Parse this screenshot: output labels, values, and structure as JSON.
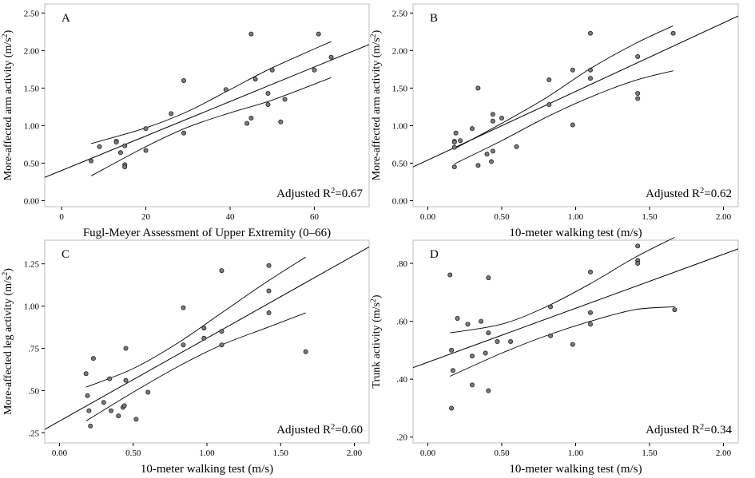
{
  "chart_data": [
    {
      "type": "scatter",
      "panel_letter": "A",
      "xlabel": "Fugl-Meyer Assessment of Upper Extremity (0–66)",
      "ylabel": "More-affected arm activity (m/s²)",
      "annotation": "Adjusted R²=0.67",
      "xlim": [
        -4,
        73
      ],
      "ylim": [
        -0.08,
        2.62
      ],
      "x_ticks": [
        0,
        20,
        40,
        60
      ],
      "x_tick_labels": [
        "0",
        "20",
        "40",
        "60"
      ],
      "y_ticks": [
        0,
        0.5,
        1.0,
        1.5,
        2.0,
        2.5
      ],
      "y_tick_labels": [
        "0.00",
        "0.50",
        "1.00",
        "1.50",
        "2.00",
        "2.50"
      ],
      "points": [
        [
          7,
          0.53
        ],
        [
          9,
          0.72
        ],
        [
          13,
          0.79
        ],
        [
          13,
          0.78
        ],
        [
          14,
          0.64
        ],
        [
          15,
          0.73
        ],
        [
          15,
          0.48
        ],
        [
          15,
          0.45
        ],
        [
          20,
          0.96
        ],
        [
          20,
          0.67
        ],
        [
          26,
          1.16
        ],
        [
          29,
          1.6
        ],
        [
          29,
          0.9
        ],
        [
          39,
          1.48
        ],
        [
          44,
          1.03
        ],
        [
          45,
          1.1
        ],
        [
          45,
          2.22
        ],
        [
          46,
          1.62
        ],
        [
          49,
          1.43
        ],
        [
          49,
          1.28
        ],
        [
          50,
          1.74
        ],
        [
          52,
          1.05
        ],
        [
          53,
          1.35
        ],
        [
          60,
          1.74
        ],
        [
          61,
          2.22
        ],
        [
          64,
          1.91
        ]
      ],
      "fit_line": {
        "x": [
          -4,
          73
        ],
        "y": [
          0.31,
          2.08
        ]
      },
      "ci_upper": {
        "x": [
          7,
          20,
          30,
          40,
          50,
          64
        ],
        "y": [
          0.76,
          0.97,
          1.19,
          1.48,
          1.77,
          2.12
        ]
      },
      "ci_lower": {
        "x": [
          7,
          20,
          30,
          40,
          50,
          64
        ],
        "y": [
          0.33,
          0.72,
          0.98,
          1.17,
          1.34,
          1.64
        ]
      }
    },
    {
      "type": "scatter",
      "panel_letter": "B",
      "xlabel": "10-meter walking test (m/s)",
      "ylabel": "More-affected arm activity (m/s²)",
      "annotation": "Adjusted R²=0.62",
      "xlim": [
        -0.1,
        2.1
      ],
      "ylim": [
        -0.08,
        2.62
      ],
      "x_ticks": [
        0,
        0.5,
        1.0,
        1.5,
        2.0
      ],
      "x_tick_labels": [
        "0.00",
        "0.50",
        "1.00",
        "1.50",
        "2.00"
      ],
      "y_ticks": [
        0,
        0.5,
        1.0,
        1.5,
        2.0,
        2.5
      ],
      "y_tick_labels": [
        "0.00",
        "0.50",
        "1.00",
        "1.50",
        "2.00",
        "2.50"
      ],
      "points": [
        [
          0.18,
          0.79
        ],
        [
          0.18,
          0.78
        ],
        [
          0.18,
          0.71
        ],
        [
          0.18,
          0.45
        ],
        [
          0.19,
          0.9
        ],
        [
          0.22,
          0.8
        ],
        [
          0.3,
          0.96
        ],
        [
          0.34,
          1.5
        ],
        [
          0.34,
          0.47
        ],
        [
          0.4,
          0.62
        ],
        [
          0.43,
          0.52
        ],
        [
          0.44,
          0.66
        ],
        [
          0.44,
          1.15
        ],
        [
          0.44,
          1.06
        ],
        [
          0.5,
          1.1
        ],
        [
          0.6,
          0.72
        ],
        [
          0.82,
          1.61
        ],
        [
          0.82,
          1.28
        ],
        [
          0.98,
          1.01
        ],
        [
          0.98,
          1.74
        ],
        [
          1.1,
          2.23
        ],
        [
          1.1,
          1.74
        ],
        [
          1.1,
          1.63
        ],
        [
          1.42,
          1.92
        ],
        [
          1.42,
          1.43
        ],
        [
          1.42,
          1.36
        ],
        [
          1.66,
          2.23
        ]
      ],
      "fit_line": {
        "x": [
          -0.1,
          2.1
        ],
        "y": [
          0.45,
          2.46
        ]
      },
      "ci_upper": {
        "x": [
          0.18,
          0.5,
          0.8,
          1.1,
          1.4,
          1.66
        ],
        "y": [
          0.69,
          1.03,
          1.37,
          1.76,
          2.09,
          2.33
        ]
      },
      "ci_lower": {
        "x": [
          0.18,
          0.5,
          0.8,
          1.1,
          1.4,
          1.66
        ],
        "y": [
          0.49,
          0.8,
          1.11,
          1.38,
          1.6,
          1.73
        ]
      }
    },
    {
      "type": "scatter",
      "panel_letter": "C",
      "xlabel": "10-meter walking test (m/s)",
      "ylabel": "More-affected leg activity (m/s²)",
      "annotation": "Adjusted R²=0.60",
      "xlim": [
        -0.1,
        2.1
      ],
      "ylim": [
        0.19,
        1.39
      ],
      "x_ticks": [
        0,
        0.5,
        1.0,
        1.5,
        2.0
      ],
      "x_tick_labels": [
        "0.00",
        "0.50",
        "1.00",
        "1.50",
        "2.00"
      ],
      "y_ticks": [
        0.25,
        0.5,
        0.75,
        1.0,
        1.25
      ],
      "y_tick_labels": [
        ".25",
        ".50",
        ".75",
        "1.00",
        "1.25"
      ],
      "points": [
        [
          0.18,
          0.6
        ],
        [
          0.19,
          0.47
        ],
        [
          0.2,
          0.38
        ],
        [
          0.21,
          0.29
        ],
        [
          0.23,
          0.69
        ],
        [
          0.3,
          0.43
        ],
        [
          0.34,
          0.57
        ],
        [
          0.35,
          0.38
        ],
        [
          0.4,
          0.35
        ],
        [
          0.43,
          0.4
        ],
        [
          0.44,
          0.41
        ],
        [
          0.45,
          0.56
        ],
        [
          0.45,
          0.75
        ],
        [
          0.52,
          0.33
        ],
        [
          0.6,
          0.49
        ],
        [
          0.84,
          0.99
        ],
        [
          0.84,
          0.77
        ],
        [
          0.98,
          0.87
        ],
        [
          0.98,
          0.81
        ],
        [
          1.1,
          1.21
        ],
        [
          1.1,
          0.85
        ],
        [
          1.1,
          0.77
        ],
        [
          1.42,
          1.24
        ],
        [
          1.42,
          1.09
        ],
        [
          1.42,
          0.96
        ],
        [
          1.67,
          0.73
        ]
      ],
      "fit_line": {
        "x": [
          -0.1,
          2.1
        ],
        "y": [
          0.27,
          1.35
        ]
      },
      "ci_upper": {
        "x": [
          0.18,
          0.5,
          0.8,
          1.1,
          1.4,
          1.67
        ],
        "y": [
          0.52,
          0.63,
          0.78,
          0.96,
          1.14,
          1.29
        ]
      },
      "ci_lower": {
        "x": [
          0.18,
          0.5,
          0.8,
          1.1,
          1.4,
          1.67
        ],
        "y": [
          0.32,
          0.49,
          0.64,
          0.77,
          0.87,
          0.96
        ]
      }
    },
    {
      "type": "scatter",
      "panel_letter": "D",
      "xlabel": "10-meter walking test (m/s)",
      "ylabel": "Trunk activity (m/s²)",
      "annotation": "Adjusted R²=0.34",
      "xlim": [
        -0.1,
        2.1
      ],
      "ylim": [
        0.18,
        0.88
      ],
      "x_ticks": [
        0,
        0.5,
        1.0,
        1.5,
        2.0
      ],
      "x_tick_labels": [
        "0.00",
        "0.50",
        "1.00",
        "1.50",
        "2.00"
      ],
      "y_ticks": [
        0.2,
        0.4,
        0.6,
        0.8
      ],
      "y_tick_labels": [
        ".20",
        ".40",
        ".60",
        ".80"
      ],
      "points": [
        [
          0.15,
          0.76
        ],
        [
          0.16,
          0.5
        ],
        [
          0.16,
          0.3
        ],
        [
          0.17,
          0.43
        ],
        [
          0.2,
          0.61
        ],
        [
          0.27,
          0.59
        ],
        [
          0.3,
          0.48
        ],
        [
          0.3,
          0.38
        ],
        [
          0.36,
          0.6
        ],
        [
          0.39,
          0.49
        ],
        [
          0.41,
          0.75
        ],
        [
          0.41,
          0.56
        ],
        [
          0.41,
          0.36
        ],
        [
          0.47,
          0.53
        ],
        [
          0.56,
          0.53
        ],
        [
          0.83,
          0.65
        ],
        [
          0.83,
          0.55
        ],
        [
          0.98,
          0.52
        ],
        [
          1.1,
          0.77
        ],
        [
          1.1,
          0.63
        ],
        [
          1.1,
          0.59
        ],
        [
          1.42,
          0.86
        ],
        [
          1.42,
          0.81
        ],
        [
          1.42,
          0.8
        ],
        [
          1.67,
          0.64
        ]
      ],
      "fit_line": {
        "x": [
          -0.1,
          2.1
        ],
        "y": [
          0.44,
          0.85
        ]
      },
      "ci_upper": {
        "x": [
          0.15,
          0.5,
          0.8,
          1.1,
          1.4,
          1.67
        ],
        "y": [
          0.56,
          0.59,
          0.65,
          0.73,
          0.82,
          0.89
        ]
      },
      "ci_lower": {
        "x": [
          0.15,
          0.5,
          0.8,
          1.1,
          1.4,
          1.67
        ],
        "y": [
          0.41,
          0.49,
          0.55,
          0.6,
          0.64,
          0.65
        ]
      }
    }
  ]
}
